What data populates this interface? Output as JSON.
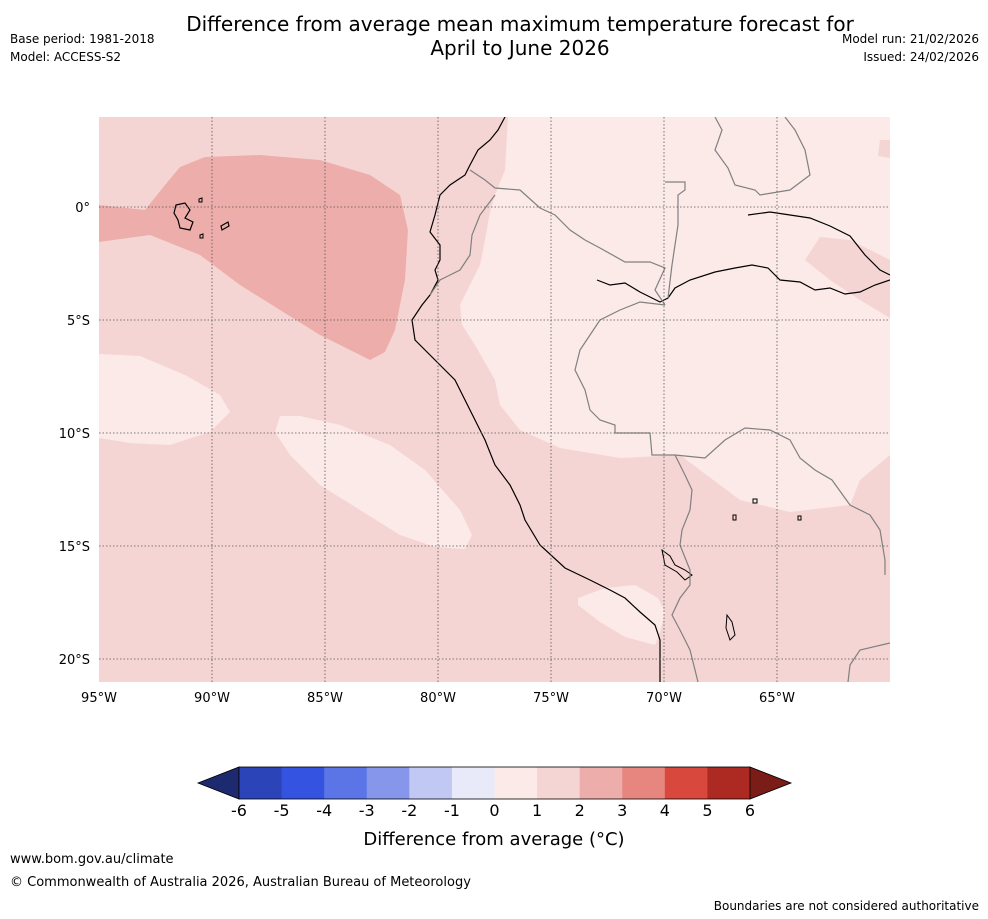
{
  "header": {
    "title_line1": "Difference from average mean maximum temperature forecast for",
    "title_line2": "April to June 2026",
    "base_period": "Base period: 1981-2018",
    "model": "Model: ACCESS-S2",
    "model_run": "Model run: 21/02/2026",
    "issued": "Issued: 24/02/2026"
  },
  "map": {
    "latitude_labels": [
      "0°",
      "5°S",
      "10°S",
      "15°S",
      "20°S"
    ],
    "longitude_labels": [
      "95°W",
      "90°W",
      "85°W",
      "80°W",
      "75°W",
      "70°W",
      "65°W"
    ],
    "latitudes": [
      0,
      -5,
      -10,
      -15,
      -20
    ],
    "longitudes": [
      -95,
      -90,
      -85,
      -80,
      -75,
      -70,
      -65
    ],
    "extent": {
      "lon_min": -95,
      "lon_max": -60,
      "lat_min": -21,
      "lat_max": 4
    }
  },
  "colorbar": {
    "ticks": [
      "-6",
      "-5",
      "-4",
      "-3",
      "-2",
      "-1",
      "0",
      "1",
      "2",
      "3",
      "4",
      "5",
      "6"
    ],
    "colors": [
      "#253494",
      "#2b44b8",
      "#3353e0",
      "#5b74e6",
      "#8596eb",
      "#c1c8f3",
      "#e8eafa",
      "#fbeae8",
      "#f5d5d3",
      "#edaeab",
      "#e6867f",
      "#d9483d",
      "#ac2a22"
    ],
    "under_color": "#1e2a70",
    "over_color": "#7a1c18",
    "label": "Difference from average (°C)"
  },
  "footer": {
    "url": "www.bom.gov.au/climate",
    "copyright": "© Commonwealth of Australia 2026, Australian Bureau of Meteorology",
    "note": "Boundaries are not considered authoritative"
  }
}
